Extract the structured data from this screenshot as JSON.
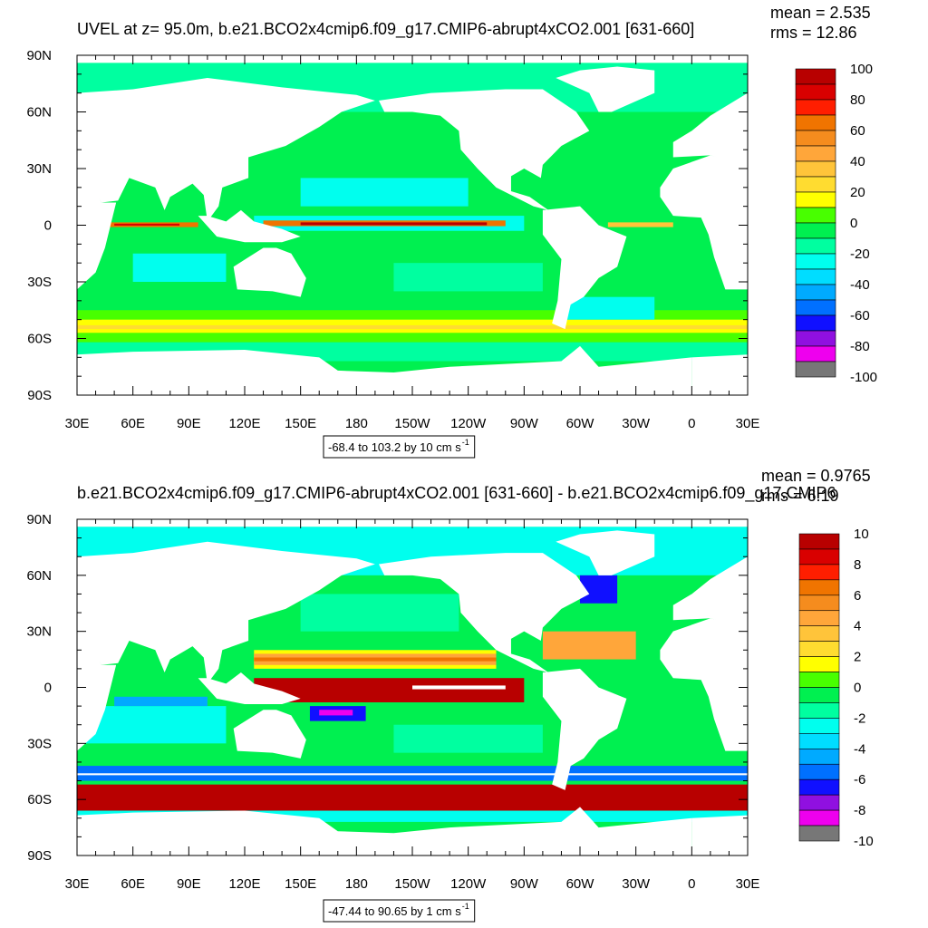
{
  "panels": [
    {
      "title": "UVEL at z=  95.0m, b.e21.BCO2x4cmip6.f09_g17.CMIP6-abrupt4xCO2.001 [631-660]",
      "mean": "mean = 2.535",
      "rms": "rms = 12.86",
      "lat_labels": [
        "90N",
        "60N",
        "30N",
        "0",
        "30S",
        "60S",
        "90S"
      ],
      "lon_labels": [
        "30E",
        "60E",
        "90E",
        "120E",
        "150E",
        "180",
        "150W",
        "120W",
        "90W",
        "60W",
        "30W",
        "0",
        "30E"
      ],
      "range_note": "-68.4 to 103.2 by 10 cm s",
      "range_note_exponent": "-1",
      "colorbar": {
        "labels": [
          100,
          80,
          60,
          40,
          20,
          0,
          -20,
          -40,
          -60,
          -80,
          -100
        ],
        "colors": [
          "#b80000",
          "#d90000",
          "#ff1e00",
          "#f07400",
          "#f58c1e",
          "#ffa63a",
          "#ffc43a",
          "#ffdc30",
          "#ffff00",
          "#48ff00",
          "#00f050",
          "#00ffa0",
          "#00ffee",
          "#00ddff",
          "#00aaff",
          "#0070ff",
          "#1010ff",
          "#9010e0",
          "#ee00ee",
          "#cccccc",
          "#777777"
        ]
      }
    },
    {
      "title": "b.e21.BCO2x4cmip6.f09_g17.CMIP6-abrupt4xCO2.001 [631-660] - b.e21.BCO2x4cmip6.f09_g17.CMIP6",
      "mean": "mean = 0.9765",
      "rms": "rms = 6.19",
      "lat_labels": [
        "90N",
        "60N",
        "30N",
        "0",
        "30S",
        "60S",
        "90S"
      ],
      "lon_labels": [
        "30E",
        "60E",
        "90E",
        "120E",
        "150E",
        "180",
        "150W",
        "120W",
        "90W",
        "60W",
        "30W",
        "0",
        "30E"
      ],
      "range_note": "-47.44 to 90.65 by 1 cm s",
      "range_note_exponent": "-1",
      "colorbar": {
        "labels": [
          10,
          8,
          6,
          4,
          2,
          0,
          -2,
          -4,
          -6,
          -8,
          -10
        ],
        "colors": [
          "#b80000",
          "#d90000",
          "#ff1e00",
          "#f07400",
          "#f58c1e",
          "#ffa63a",
          "#ffc43a",
          "#ffdc30",
          "#ffff00",
          "#48ff00",
          "#00f050",
          "#00ffa0",
          "#00ffee",
          "#00ddff",
          "#00aaff",
          "#0070ff",
          "#1010ff",
          "#9010e0",
          "#ee00ee",
          "#cccccc",
          "#777777"
        ]
      }
    }
  ]
}
